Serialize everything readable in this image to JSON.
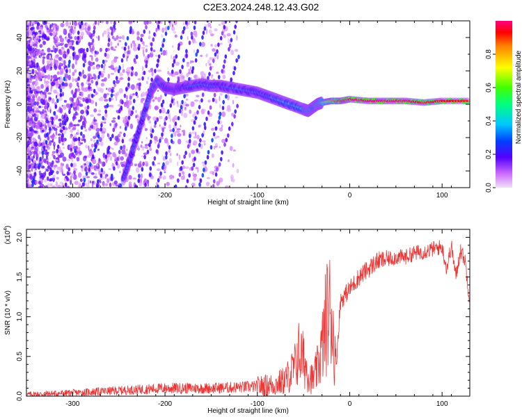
{
  "title": "C2E3.2024.248.12.43.G02",
  "chart_data": [
    {
      "type": "heatmap",
      "xlabel": "Height of straight line (km)",
      "ylabel": "Frequency (Hz)",
      "xlim": [
        -350,
        130
      ],
      "ylim": [
        -50,
        50
      ],
      "xticks": [
        -300,
        -200,
        -100,
        0,
        100
      ],
      "yticks": [
        -40,
        -20,
        0,
        20,
        40
      ],
      "xtick_labels": [
        "-300",
        "-200",
        "-100",
        "0",
        "100"
      ],
      "ytick_labels": [
        "-40",
        "-20",
        "0",
        "20",
        "40"
      ],
      "colorbar": {
        "label": "Normalized spectral amplitude",
        "range": [
          0.0,
          1.0
        ],
        "ticks": [
          0.0,
          0.2,
          0.4,
          0.6,
          0.8
        ],
        "tick_labels": [
          "0.0",
          "0.2",
          "0.4",
          "0.6",
          "0.8"
        ]
      },
      "ridge": {
        "x": [
          -245,
          -235,
          -225,
          -215,
          -208,
          -200,
          -190,
          -180,
          -170,
          -160,
          -150,
          -140,
          -130,
          -120,
          -110,
          -100,
          -90,
          -80,
          -70,
          -60,
          -50,
          -45,
          -40,
          -35,
          -30,
          -20,
          -10,
          0,
          20,
          40,
          60,
          80,
          100,
          130
        ],
        "y": [
          -45,
          -28,
          -10,
          8,
          14,
          10,
          9,
          10,
          11,
          12,
          11,
          11,
          10,
          9,
          8,
          7,
          5,
          3,
          1,
          -1,
          -3,
          -4,
          -2,
          0,
          1,
          2,
          2,
          3,
          2,
          2,
          2,
          1,
          2,
          2
        ],
        "amplitude": [
          0.3,
          0.3,
          0.3,
          0.35,
          0.4,
          0.3,
          0.25,
          0.3,
          0.35,
          0.35,
          0.35,
          0.3,
          0.35,
          0.35,
          0.35,
          0.35,
          0.35,
          0.4,
          0.45,
          0.45,
          0.5,
          0.55,
          0.5,
          0.55,
          0.6,
          0.8,
          0.95,
          1.0,
          1.0,
          1.0,
          1.0,
          0.9,
          0.95,
          0.9
        ]
      }
    },
    {
      "type": "line",
      "xlabel": "Height of straight line (km)",
      "ylabel": "SNR (10 * v/v)",
      "y_multiplier_label": "(x10",
      "y_multiplier_exp": "4",
      "xlim": [
        -350,
        130
      ],
      "ylim": [
        0,
        2.1
      ],
      "xticks": [
        -300,
        -200,
        -100,
        0,
        100
      ],
      "yticks": [
        0.0,
        0.5,
        1.0,
        1.5,
        2.0
      ],
      "xtick_labels": [
        "-300",
        "-200",
        "-100",
        "0",
        "100"
      ],
      "ytick_labels": [
        "0.0",
        "0.5",
        "1.0",
        "1.5",
        "2.0"
      ],
      "color": "#ee3333",
      "x": [
        -350,
        -300,
        -250,
        -200,
        -150,
        -100,
        -80,
        -70,
        -60,
        -55,
        -50,
        -45,
        -40,
        -35,
        -30,
        -25,
        -20,
        -15,
        -10,
        0,
        10,
        20,
        30,
        40,
        50,
        60,
        70,
        80,
        90,
        100,
        105,
        110,
        115,
        120,
        125,
        130
      ],
      "y": [
        0.02,
        0.04,
        0.07,
        0.1,
        0.1,
        0.12,
        0.15,
        0.2,
        0.35,
        0.55,
        0.45,
        0.3,
        0.2,
        0.35,
        0.6,
        1.0,
        1.1,
        0.35,
        1.2,
        1.35,
        1.5,
        1.6,
        1.7,
        1.72,
        1.75,
        1.75,
        1.8,
        1.82,
        1.85,
        1.88,
        1.6,
        1.9,
        1.5,
        1.85,
        1.7,
        1.2
      ]
    }
  ]
}
